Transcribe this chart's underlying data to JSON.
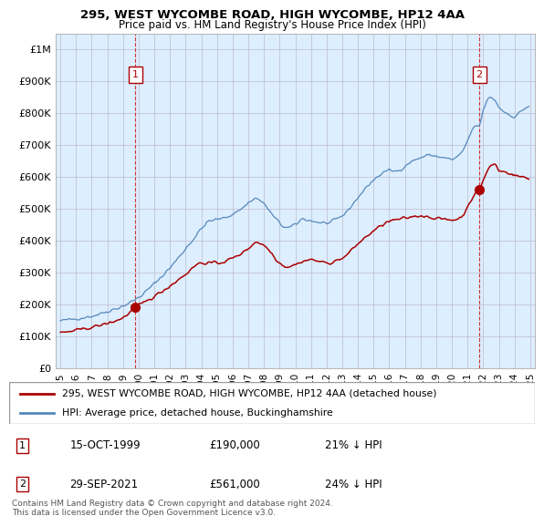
{
  "title": "295, WEST WYCOMBE ROAD, HIGH WYCOMBE, HP12 4AA",
  "subtitle": "Price paid vs. HM Land Registry's House Price Index (HPI)",
  "legend_line1": "295, WEST WYCOMBE ROAD, HIGH WYCOMBE, HP12 4AA (detached house)",
  "legend_line2": "HPI: Average price, detached house, Buckinghamshire",
  "annotation1_date": "15-OCT-1999",
  "annotation1_price": "£190,000",
  "annotation1_hpi": "21% ↓ HPI",
  "annotation1_year": 1999.79,
  "annotation1_value": 190000,
  "annotation2_date": "29-SEP-2021",
  "annotation2_price": "£561,000",
  "annotation2_hpi": "24% ↓ HPI",
  "annotation2_year": 2021.75,
  "annotation2_value": 561000,
  "footer": "Contains HM Land Registry data © Crown copyright and database right 2024.\nThis data is licensed under the Open Government Licence v3.0.",
  "line_color_property": "#aa0000",
  "line_color_hpi": "#5588bb",
  "background_plot": "#ddeeff",
  "background_fig": "#ffffff",
  "grid_color": "#bbbbcc",
  "ylim": [
    0,
    1050000
  ],
  "xlim_start": 1994.7,
  "xlim_end": 2025.3,
  "yticks": [
    0,
    100000,
    200000,
    300000,
    400000,
    500000,
    600000,
    700000,
    800000,
    900000,
    1000000
  ],
  "ytick_labels": [
    "£0",
    "£100K",
    "£200K",
    "£300K",
    "£400K",
    "£500K",
    "£600K",
    "£700K",
    "£800K",
    "£900K",
    "£1M"
  ],
  "xticks": [
    1995,
    1996,
    1997,
    1998,
    1999,
    2000,
    2001,
    2002,
    2003,
    2004,
    2005,
    2006,
    2007,
    2008,
    2009,
    2010,
    2011,
    2012,
    2013,
    2014,
    2015,
    2016,
    2017,
    2018,
    2019,
    2020,
    2021,
    2022,
    2023,
    2024,
    2025
  ]
}
